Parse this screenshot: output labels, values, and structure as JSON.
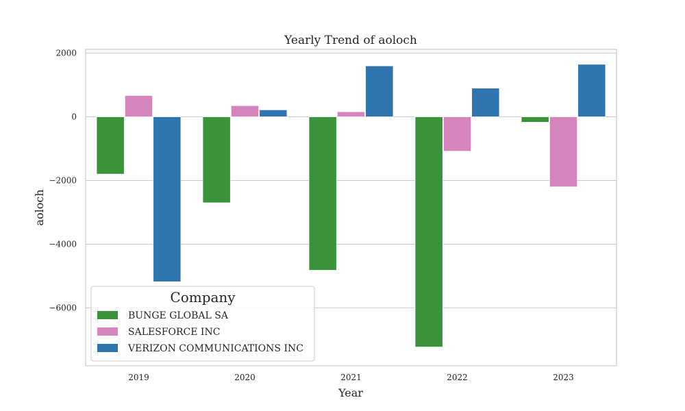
{
  "chart_data": {
    "type": "bar",
    "title": "Yearly Trend of aoloch",
    "xlabel": "Year",
    "ylabel": "aoloch",
    "categories": [
      "2019",
      "2020",
      "2021",
      "2022",
      "2023"
    ],
    "series": [
      {
        "name": "BUNGE GLOBAL SA",
        "color": "#3a923a",
        "values": [
          -1800,
          -2700,
          -4820,
          -7230,
          -170
        ]
      },
      {
        "name": "SALESFORCE INC",
        "color": "#d684bd",
        "values": [
          670,
          350,
          160,
          -1080,
          -2200
        ]
      },
      {
        "name": "VERIZON COMMUNICATIONS INC",
        "color": "#2e75b0",
        "values": [
          -5180,
          220,
          1600,
          900,
          1650
        ]
      }
    ],
    "ylim": [
      -7820,
      2120
    ],
    "yticks": [
      2000,
      0,
      -2000,
      -4000,
      -6000
    ],
    "ytick_labels": [
      "2000",
      "0",
      "−2000",
      "−4000",
      "−6000"
    ],
    "grid": true,
    "legend": {
      "title": "Company",
      "placement": "lower-left"
    }
  }
}
